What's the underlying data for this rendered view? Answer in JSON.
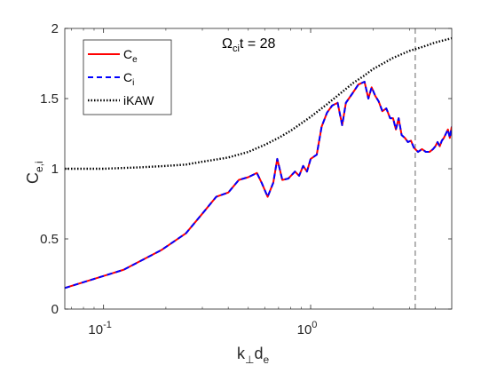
{
  "chart_data": {
    "type": "line",
    "xscale": "log",
    "xlim": [
      0.065,
      4.8
    ],
    "ylim": [
      0,
      2
    ],
    "xticks": [
      {
        "value": 0.1,
        "base": "10",
        "exp": "-1"
      },
      {
        "value": 1,
        "base": "10",
        "exp": "0"
      }
    ],
    "yticks": [
      {
        "value": 0,
        "label": "0"
      },
      {
        "value": 0.5,
        "label": "0.5"
      },
      {
        "value": 1,
        "label": "1"
      },
      {
        "value": 1.5,
        "label": "1.5"
      },
      {
        "value": 2,
        "label": "2"
      }
    ],
    "xlabel": {
      "main1": "k",
      "sub1": "⊥",
      "main2": "d",
      "sub2": "e"
    },
    "ylabel": {
      "main": "C",
      "sub": "e,i"
    },
    "annotation": {
      "omega": "Ω",
      "omega_sub": "ci",
      "rest": "t = 28"
    },
    "vline_x": 3.2,
    "legend_position": "top-left",
    "grid": false,
    "series": [
      {
        "key": "Ce",
        "label_main": "C",
        "label_sub": "e",
        "color": "#ff0000",
        "style": "solid",
        "x": [
          0.065,
          0.125,
          0.19,
          0.25,
          0.3,
          0.35,
          0.4,
          0.45,
          0.5,
          0.55,
          0.58,
          0.62,
          0.66,
          0.69,
          0.73,
          0.78,
          0.84,
          0.88,
          0.92,
          0.96,
          1.0,
          1.07,
          1.13,
          1.2,
          1.27,
          1.35,
          1.42,
          1.48,
          1.58,
          1.7,
          1.82,
          1.9,
          1.97,
          2.05,
          2.13,
          2.22,
          2.32,
          2.42,
          2.5,
          2.58,
          2.66,
          2.75,
          2.85,
          2.95,
          3.05,
          3.15,
          3.3,
          3.45,
          3.6,
          3.75,
          3.9,
          4.0,
          4.1,
          4.2,
          4.3,
          4.4,
          4.5,
          4.6,
          4.7,
          4.8
        ],
        "y": [
          0.15,
          0.28,
          0.42,
          0.54,
          0.68,
          0.8,
          0.83,
          0.92,
          0.94,
          0.97,
          0.9,
          0.8,
          0.9,
          1.07,
          0.92,
          0.93,
          0.98,
          0.95,
          1.02,
          0.98,
          1.07,
          1.1,
          1.3,
          1.4,
          1.45,
          1.47,
          1.31,
          1.47,
          1.53,
          1.6,
          1.62,
          1.5,
          1.58,
          1.52,
          1.48,
          1.41,
          1.43,
          1.36,
          1.36,
          1.28,
          1.36,
          1.24,
          1.22,
          1.19,
          1.2,
          1.15,
          1.12,
          1.14,
          1.12,
          1.12,
          1.14,
          1.16,
          1.19,
          1.16,
          1.2,
          1.22,
          1.25,
          1.28,
          1.22,
          1.3
        ]
      },
      {
        "key": "Ci",
        "label_main": "C",
        "label_sub": "i",
        "color": "#0000ff",
        "style": "dashed",
        "x": [
          0.065,
          0.125,
          0.19,
          0.25,
          0.3,
          0.35,
          0.4,
          0.45,
          0.5,
          0.55,
          0.58,
          0.62,
          0.66,
          0.69,
          0.73,
          0.78,
          0.84,
          0.88,
          0.92,
          0.96,
          1.0,
          1.07,
          1.13,
          1.2,
          1.27,
          1.35,
          1.42,
          1.48,
          1.58,
          1.7,
          1.82,
          1.9,
          1.97,
          2.05,
          2.13,
          2.22,
          2.32,
          2.42,
          2.5,
          2.58,
          2.66,
          2.75,
          2.85,
          2.95,
          3.05,
          3.15,
          3.3,
          3.45,
          3.6,
          3.75,
          3.9,
          4.0,
          4.1,
          4.2,
          4.3,
          4.4,
          4.5,
          4.6,
          4.7,
          4.8
        ],
        "y": [
          0.15,
          0.28,
          0.42,
          0.54,
          0.68,
          0.8,
          0.83,
          0.92,
          0.94,
          0.97,
          0.9,
          0.8,
          0.9,
          1.07,
          0.92,
          0.93,
          0.98,
          0.95,
          1.02,
          0.98,
          1.07,
          1.1,
          1.3,
          1.4,
          1.45,
          1.47,
          1.31,
          1.47,
          1.53,
          1.6,
          1.62,
          1.5,
          1.58,
          1.52,
          1.48,
          1.41,
          1.43,
          1.36,
          1.36,
          1.28,
          1.36,
          1.24,
          1.22,
          1.19,
          1.2,
          1.15,
          1.12,
          1.14,
          1.12,
          1.12,
          1.14,
          1.16,
          1.19,
          1.16,
          1.2,
          1.22,
          1.25,
          1.28,
          1.22,
          1.3
        ]
      },
      {
        "key": "iKAW",
        "label_main": "iKAW",
        "label_sub": "",
        "color": "#000000",
        "style": "dotted",
        "x": [
          0.065,
          0.1,
          0.15,
          0.2,
          0.25,
          0.3,
          0.4,
          0.5,
          0.6,
          0.7,
          0.8,
          1.0,
          1.2,
          1.4,
          1.6,
          1.8,
          2.0,
          2.5,
          3.0,
          3.5,
          4.0,
          4.8
        ],
        "y": [
          1.0,
          1.0,
          1.01,
          1.02,
          1.03,
          1.05,
          1.08,
          1.12,
          1.17,
          1.22,
          1.27,
          1.37,
          1.46,
          1.54,
          1.61,
          1.66,
          1.71,
          1.79,
          1.84,
          1.87,
          1.9,
          1.93
        ]
      }
    ]
  }
}
